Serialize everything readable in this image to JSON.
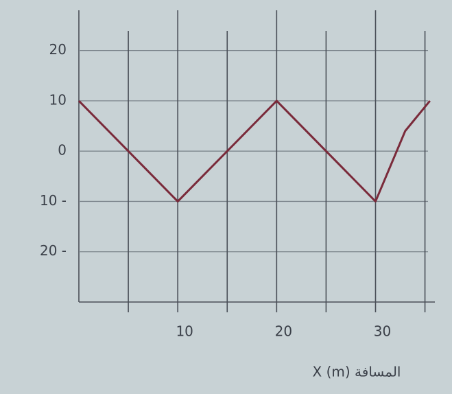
{
  "chart_data": {
    "type": "line",
    "xlabel": "X (m) المسافة",
    "x": [
      0,
      10,
      20,
      30,
      33,
      35.5
    ],
    "series": [
      {
        "color": "#7a2a3a",
        "values": [
          10,
          -10,
          10,
          -10,
          4,
          10
        ]
      }
    ],
    "xlim": [
      0,
      36
    ],
    "ylim": [
      -30,
      28
    ],
    "xticks": [
      10,
      20,
      30
    ],
    "minor_xticks": [
      5,
      15,
      25,
      35
    ],
    "yticks": [
      20,
      10,
      0,
      {
        "value": -10,
        "label": "10 -"
      },
      {
        "value": -20,
        "label": "20 -"
      }
    ],
    "grid": true
  }
}
